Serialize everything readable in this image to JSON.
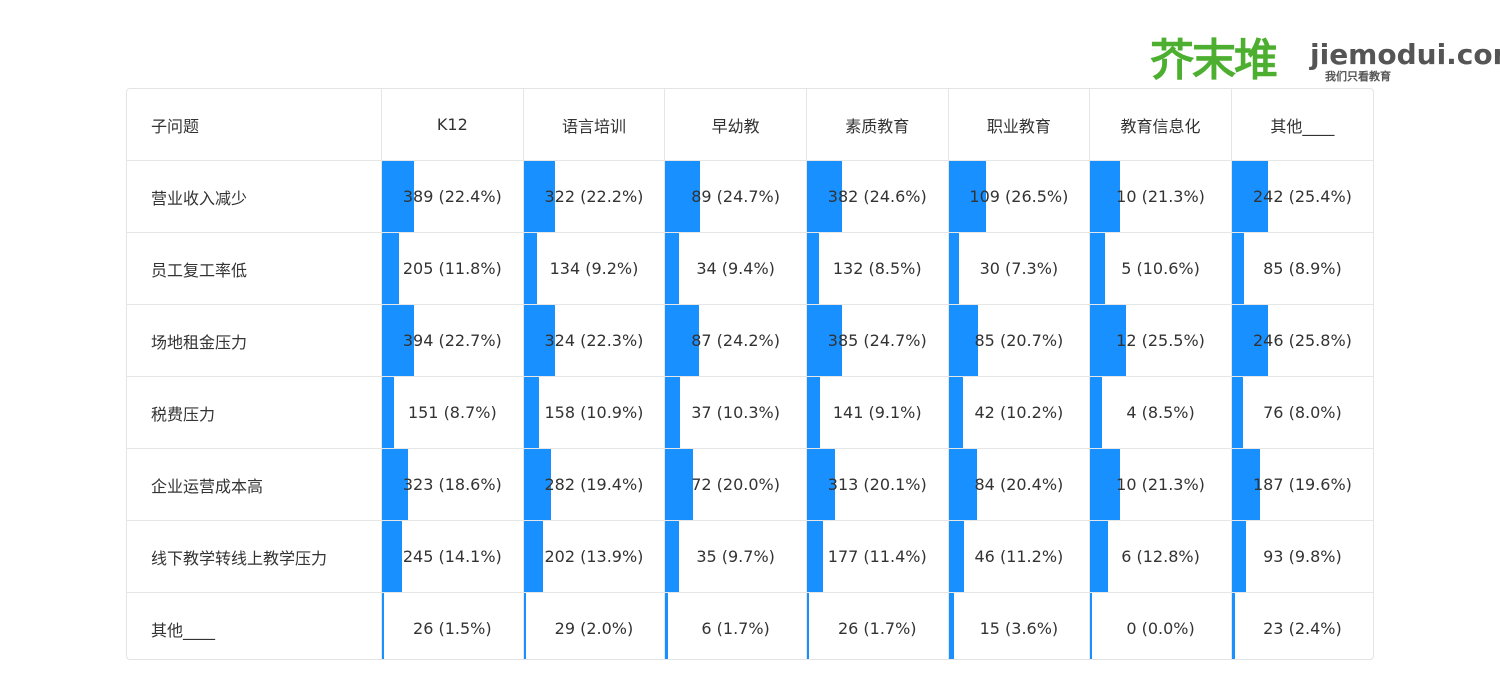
{
  "logo": {
    "cn": "芥末堆",
    "en": "jiemodui.com",
    "slogan": "我们只看教育"
  },
  "colors": {
    "bar": "#1890ff",
    "logo_green": "#4caf2f"
  },
  "chart_data": {
    "type": "table",
    "corner_header": "子问题",
    "columns": [
      "K12",
      "语言培训",
      "早幼教",
      "素质教育",
      "职业教育",
      "教育信息化",
      "其他____"
    ],
    "rows": [
      {
        "label": "营业收入减少",
        "cells": [
          {
            "text": "389 (22.4%)",
            "count": 389,
            "pct": 22.4
          },
          {
            "text": "322 (22.2%)",
            "count": 322,
            "pct": 22.2
          },
          {
            "text": "89 (24.7%)",
            "count": 89,
            "pct": 24.7
          },
          {
            "text": "382 (24.6%)",
            "count": 382,
            "pct": 24.6
          },
          {
            "text": "109 (26.5%)",
            "count": 109,
            "pct": 26.5
          },
          {
            "text": "10 (21.3%)",
            "count": 10,
            "pct": 21.3
          },
          {
            "text": "242 (25.4%)",
            "count": 242,
            "pct": 25.4
          }
        ]
      },
      {
        "label": "员工复工率低",
        "cells": [
          {
            "text": "205 (11.8%)",
            "count": 205,
            "pct": 11.8
          },
          {
            "text": "134 (9.2%)",
            "count": 134,
            "pct": 9.2
          },
          {
            "text": "34 (9.4%)",
            "count": 34,
            "pct": 9.4
          },
          {
            "text": "132 (8.5%)",
            "count": 132,
            "pct": 8.5
          },
          {
            "text": "30 (7.3%)",
            "count": 30,
            "pct": 7.3
          },
          {
            "text": "5 (10.6%)",
            "count": 5,
            "pct": 10.6
          },
          {
            "text": "85 (8.9%)",
            "count": 85,
            "pct": 8.9
          }
        ]
      },
      {
        "label": "场地租金压力",
        "cells": [
          {
            "text": "394 (22.7%)",
            "count": 394,
            "pct": 22.7
          },
          {
            "text": "324 (22.3%)",
            "count": 324,
            "pct": 22.3
          },
          {
            "text": "87 (24.2%)",
            "count": 87,
            "pct": 24.2
          },
          {
            "text": "385 (24.7%)",
            "count": 385,
            "pct": 24.7
          },
          {
            "text": "85 (20.7%)",
            "count": 85,
            "pct": 20.7
          },
          {
            "text": "12 (25.5%)",
            "count": 12,
            "pct": 25.5
          },
          {
            "text": "246 (25.8%)",
            "count": 246,
            "pct": 25.8
          }
        ]
      },
      {
        "label": "税费压力",
        "cells": [
          {
            "text": "151 (8.7%)",
            "count": 151,
            "pct": 8.7
          },
          {
            "text": "158 (10.9%)",
            "count": 158,
            "pct": 10.9
          },
          {
            "text": "37 (10.3%)",
            "count": 37,
            "pct": 10.3
          },
          {
            "text": "141 (9.1%)",
            "count": 141,
            "pct": 9.1
          },
          {
            "text": "42 (10.2%)",
            "count": 42,
            "pct": 10.2
          },
          {
            "text": "4 (8.5%)",
            "count": 4,
            "pct": 8.5
          },
          {
            "text": "76 (8.0%)",
            "count": 76,
            "pct": 8.0
          }
        ]
      },
      {
        "label": "企业运营成本高",
        "cells": [
          {
            "text": "323 (18.6%)",
            "count": 323,
            "pct": 18.6
          },
          {
            "text": "282 (19.4%)",
            "count": 282,
            "pct": 19.4
          },
          {
            "text": "72 (20.0%)",
            "count": 72,
            "pct": 20.0
          },
          {
            "text": "313 (20.1%)",
            "count": 313,
            "pct": 20.1
          },
          {
            "text": "84 (20.4%)",
            "count": 84,
            "pct": 20.4
          },
          {
            "text": "10 (21.3%)",
            "count": 10,
            "pct": 21.3
          },
          {
            "text": "187 (19.6%)",
            "count": 187,
            "pct": 19.6
          }
        ]
      },
      {
        "label": "线下教学转线上教学压力",
        "cells": [
          {
            "text": "245 (14.1%)",
            "count": 245,
            "pct": 14.1
          },
          {
            "text": "202 (13.9%)",
            "count": 202,
            "pct": 13.9
          },
          {
            "text": "35 (9.7%)",
            "count": 35,
            "pct": 9.7
          },
          {
            "text": "177 (11.4%)",
            "count": 177,
            "pct": 11.4
          },
          {
            "text": "46 (11.2%)",
            "count": 46,
            "pct": 11.2
          },
          {
            "text": "6 (12.8%)",
            "count": 6,
            "pct": 12.8
          },
          {
            "text": "93 (9.8%)",
            "count": 93,
            "pct": 9.8
          }
        ]
      },
      {
        "label": "其他____",
        "cells": [
          {
            "text": "26 (1.5%)",
            "count": 26,
            "pct": 1.5
          },
          {
            "text": "29 (2.0%)",
            "count": 29,
            "pct": 2.0
          },
          {
            "text": "6 (1.7%)",
            "count": 6,
            "pct": 1.7
          },
          {
            "text": "26 (1.7%)",
            "count": 26,
            "pct": 1.7
          },
          {
            "text": "15 (3.6%)",
            "count": 15,
            "pct": 3.6
          },
          {
            "text": "0 (0.0%)",
            "count": 0,
            "pct": 0.0
          },
          {
            "text": "23 (2.4%)",
            "count": 23,
            "pct": 2.4
          }
        ]
      }
    ]
  }
}
